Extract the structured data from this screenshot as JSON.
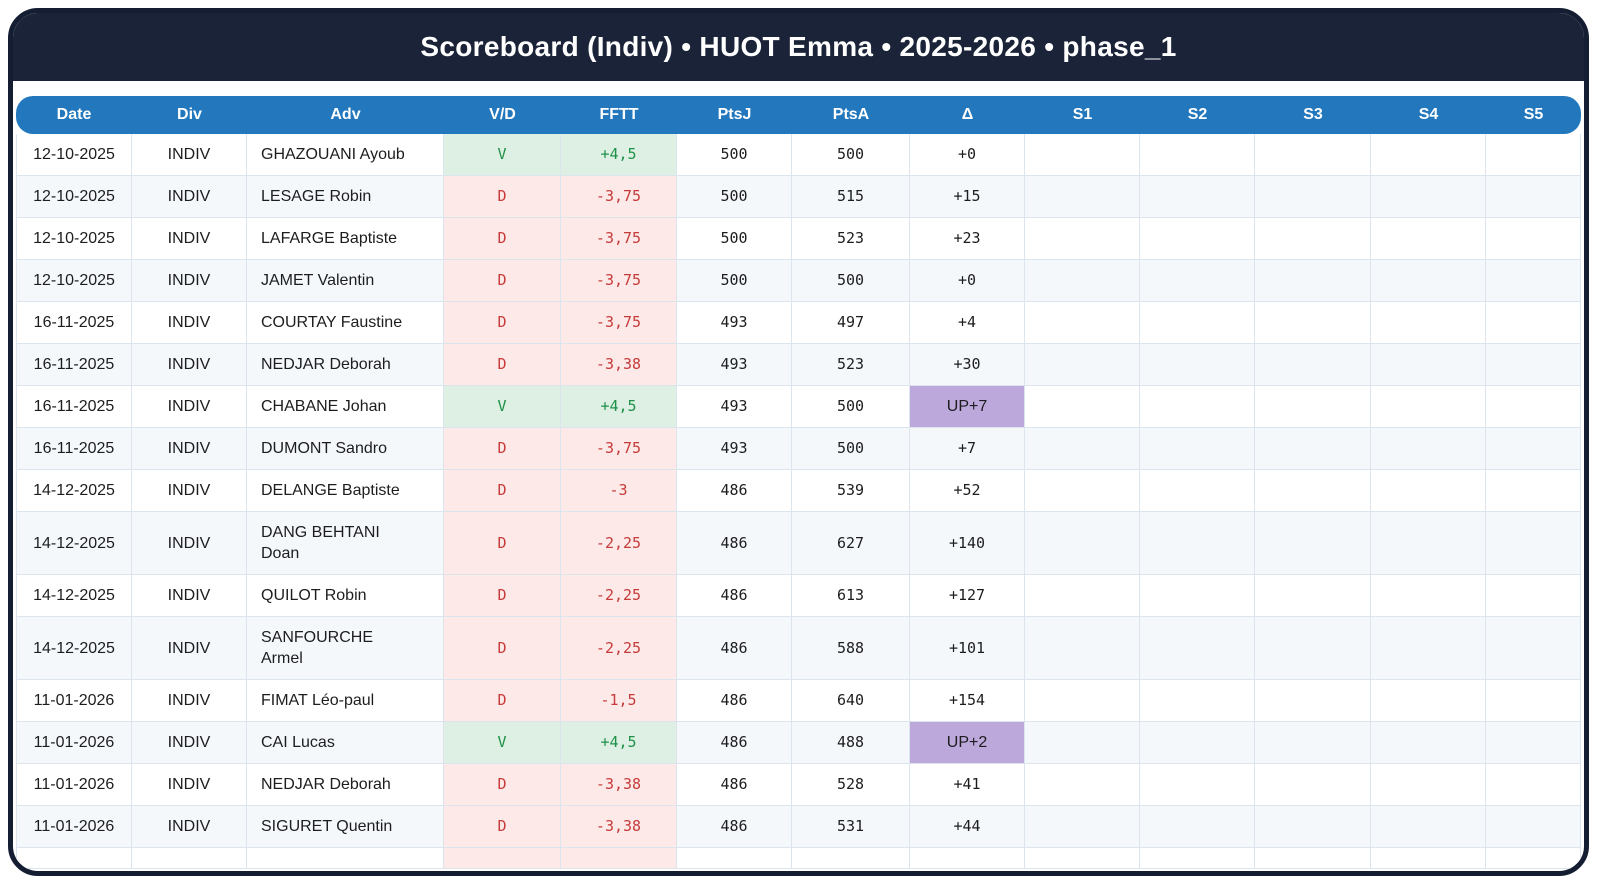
{
  "title": "Scoreboard (Indiv) • HUOT Emma • 2025-2026 • phase_1",
  "colors": {
    "titlebar_navy": "#1a2338",
    "header_blue": "#2277bd",
    "win_green_text": "#1e9148",
    "win_green_bg": "#def0e3",
    "loss_red_text": "#c63a3a",
    "loss_red_bg": "#fdeae8",
    "promo_purple_bg": "#bda8dc",
    "row_alt_bg": "#f5f8fb"
  },
  "table": {
    "columns": [
      {
        "key": "date",
        "label": "Date"
      },
      {
        "key": "div",
        "label": "Div"
      },
      {
        "key": "adv",
        "label": "Adv"
      },
      {
        "key": "vd",
        "label": "V/D"
      },
      {
        "key": "fftt",
        "label": "FFTT"
      },
      {
        "key": "ptsj",
        "label": "PtsJ"
      },
      {
        "key": "ptsa",
        "label": "PtsA"
      },
      {
        "key": "delta",
        "label": "Δ"
      },
      {
        "key": "s1",
        "label": "S1"
      },
      {
        "key": "s2",
        "label": "S2"
      },
      {
        "key": "s3",
        "label": "S3"
      },
      {
        "key": "s4",
        "label": "S4"
      },
      {
        "key": "s5",
        "label": "S5"
      }
    ],
    "rows": [
      {
        "date": "12-10-2025",
        "div": "INDIV",
        "adv": "GHAZOUANI Ayoub",
        "vd": "V",
        "fftt": "+4,5",
        "ptsj": "500",
        "ptsa": "500",
        "delta": "+0",
        "result": "win",
        "promo": false,
        "s1": "",
        "s2": "",
        "s3": "",
        "s4": "",
        "s5": ""
      },
      {
        "date": "12-10-2025",
        "div": "INDIV",
        "adv": "LESAGE Robin",
        "vd": "D",
        "fftt": "-3,75",
        "ptsj": "500",
        "ptsa": "515",
        "delta": "+15",
        "result": "loss",
        "promo": false,
        "s1": "",
        "s2": "",
        "s3": "",
        "s4": "",
        "s5": ""
      },
      {
        "date": "12-10-2025",
        "div": "INDIV",
        "adv": "LAFARGE Baptiste",
        "vd": "D",
        "fftt": "-3,75",
        "ptsj": "500",
        "ptsa": "523",
        "delta": "+23",
        "result": "loss",
        "promo": false,
        "s1": "",
        "s2": "",
        "s3": "",
        "s4": "",
        "s5": ""
      },
      {
        "date": "12-10-2025",
        "div": "INDIV",
        "adv": "JAMET Valentin",
        "vd": "D",
        "fftt": "-3,75",
        "ptsj": "500",
        "ptsa": "500",
        "delta": "+0",
        "result": "loss",
        "promo": false,
        "s1": "",
        "s2": "",
        "s3": "",
        "s4": "",
        "s5": ""
      },
      {
        "date": "16-11-2025",
        "div": "INDIV",
        "adv": "COURTAY Faustine",
        "vd": "D",
        "fftt": "-3,75",
        "ptsj": "493",
        "ptsa": "497",
        "delta": "+4",
        "result": "loss",
        "promo": false,
        "s1": "",
        "s2": "",
        "s3": "",
        "s4": "",
        "s5": ""
      },
      {
        "date": "16-11-2025",
        "div": "INDIV",
        "adv": "NEDJAR Deborah",
        "vd": "D",
        "fftt": "-3,38",
        "ptsj": "493",
        "ptsa": "523",
        "delta": "+30",
        "result": "loss",
        "promo": false,
        "s1": "",
        "s2": "",
        "s3": "",
        "s4": "",
        "s5": ""
      },
      {
        "date": "16-11-2025",
        "div": "INDIV",
        "adv": "CHABANE Johan",
        "vd": "V",
        "fftt": "+4,5",
        "ptsj": "493",
        "ptsa": "500",
        "delta": "UP+7",
        "result": "win",
        "promo": true,
        "s1": "",
        "s2": "",
        "s3": "",
        "s4": "",
        "s5": ""
      },
      {
        "date": "16-11-2025",
        "div": "INDIV",
        "adv": "DUMONT Sandro",
        "vd": "D",
        "fftt": "-3,75",
        "ptsj": "493",
        "ptsa": "500",
        "delta": "+7",
        "result": "loss",
        "promo": false,
        "s1": "",
        "s2": "",
        "s3": "",
        "s4": "",
        "s5": ""
      },
      {
        "date": "14-12-2025",
        "div": "INDIV",
        "adv": "DELANGE Baptiste",
        "vd": "D",
        "fftt": "-3",
        "ptsj": "486",
        "ptsa": "539",
        "delta": "+52",
        "result": "loss",
        "promo": false,
        "s1": "",
        "s2": "",
        "s3": "",
        "s4": "",
        "s5": ""
      },
      {
        "date": "14-12-2025",
        "div": "INDIV",
        "adv": "DANG BEHTANI Doan",
        "vd": "D",
        "fftt": "-2,25",
        "ptsj": "486",
        "ptsa": "627",
        "delta": "+140",
        "result": "loss",
        "promo": false,
        "s1": "",
        "s2": "",
        "s3": "",
        "s4": "",
        "s5": ""
      },
      {
        "date": "14-12-2025",
        "div": "INDIV",
        "adv": "QUILOT Robin",
        "vd": "D",
        "fftt": "-2,25",
        "ptsj": "486",
        "ptsa": "613",
        "delta": "+127",
        "result": "loss",
        "promo": false,
        "s1": "",
        "s2": "",
        "s3": "",
        "s4": "",
        "s5": ""
      },
      {
        "date": "14-12-2025",
        "div": "INDIV",
        "adv": "SANFOURCHE Armel",
        "vd": "D",
        "fftt": "-2,25",
        "ptsj": "486",
        "ptsa": "588",
        "delta": "+101",
        "result": "loss",
        "promo": false,
        "s1": "",
        "s2": "",
        "s3": "",
        "s4": "",
        "s5": ""
      },
      {
        "date": "11-01-2026",
        "div": "INDIV",
        "adv": "FIMAT Léo-paul",
        "vd": "D",
        "fftt": "-1,5",
        "ptsj": "486",
        "ptsa": "640",
        "delta": "+154",
        "result": "loss",
        "promo": false,
        "s1": "",
        "s2": "",
        "s3": "",
        "s4": "",
        "s5": ""
      },
      {
        "date": "11-01-2026",
        "div": "INDIV",
        "adv": "CAI Lucas",
        "vd": "V",
        "fftt": "+4,5",
        "ptsj": "486",
        "ptsa": "488",
        "delta": "UP+2",
        "result": "win",
        "promo": true,
        "s1": "",
        "s2": "",
        "s3": "",
        "s4": "",
        "s5": ""
      },
      {
        "date": "11-01-2026",
        "div": "INDIV",
        "adv": "NEDJAR Deborah",
        "vd": "D",
        "fftt": "-3,38",
        "ptsj": "486",
        "ptsa": "528",
        "delta": "+41",
        "result": "loss",
        "promo": false,
        "s1": "",
        "s2": "",
        "s3": "",
        "s4": "",
        "s5": ""
      },
      {
        "date": "11-01-2026",
        "div": "INDIV",
        "adv": "SIGURET Quentin",
        "vd": "D",
        "fftt": "-3,38",
        "ptsj": "486",
        "ptsa": "531",
        "delta": "+44",
        "result": "loss",
        "promo": false,
        "s1": "",
        "s2": "",
        "s3": "",
        "s4": "",
        "s5": ""
      }
    ],
    "partial_row": {
      "result": "loss"
    }
  }
}
